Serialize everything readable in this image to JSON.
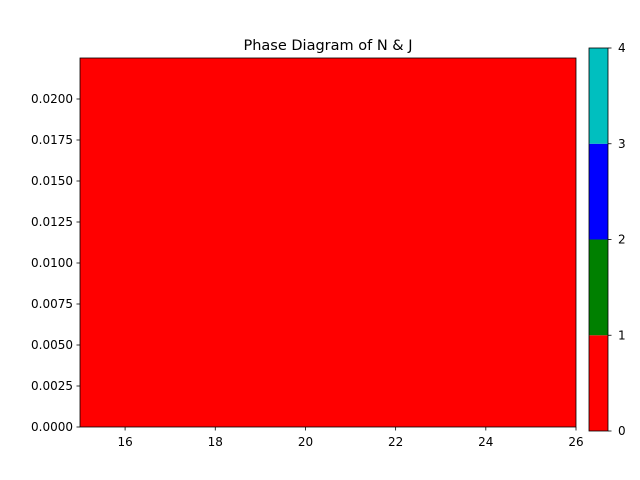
{
  "chart_data": {
    "type": "heatmap",
    "title": "Phase Diagram of N & J",
    "xlabel": "",
    "ylabel": "",
    "xlim": [
      15,
      26
    ],
    "ylim": [
      0,
      0.0225
    ],
    "x_ticks": [
      16,
      18,
      20,
      22,
      24,
      26
    ],
    "x_tick_labels": [
      "16",
      "18",
      "20",
      "22",
      "24",
      "26"
    ],
    "y_ticks": [
      0,
      0.0025,
      0.005,
      0.0075,
      0.01,
      0.0125,
      0.015,
      0.0175,
      0.02
    ],
    "y_tick_labels": [
      "0.0000",
      "0.0025",
      "0.0050",
      "0.0075",
      "0.0100",
      "0.0125",
      "0.0150",
      "0.0175",
      "0.0200"
    ],
    "regions": [
      {
        "x_range": [
          15,
          26
        ],
        "y_range": [
          0,
          0.0225
        ],
        "phase": 0
      }
    ],
    "grid": false,
    "colorbar": {
      "levels": [
        0,
        1,
        2,
        3,
        4
      ],
      "tick_labels": [
        "0",
        "1",
        "2",
        "3",
        "4"
      ],
      "colors": [
        "#ff0000",
        "#008000",
        "#0000ff",
        "#00bfbf"
      ]
    }
  }
}
